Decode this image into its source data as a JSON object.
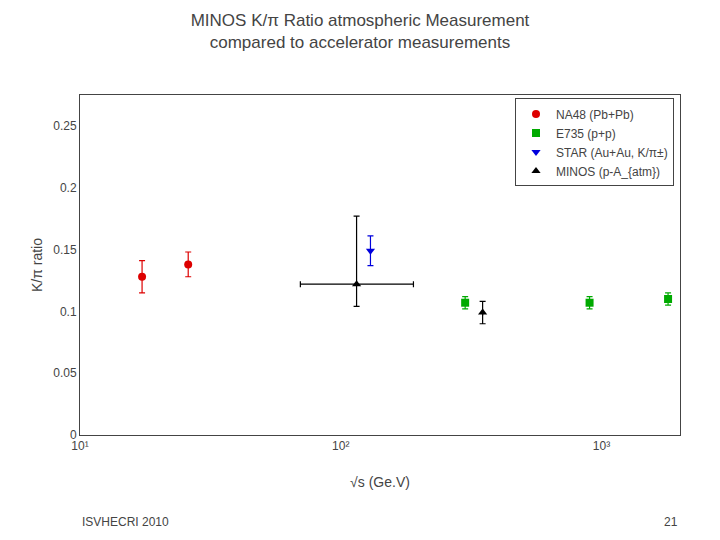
{
  "chart_data": {
    "type": "scatter",
    "title": "MINOS K/π Ratio atmospheric Measurement",
    "subtitle": "compared to accelerator measurements",
    "x_label": "√s (Ge.V)",
    "y_label": "K/π ratio",
    "annotations": [
      "ISVHECRI 2010",
      "21"
    ],
    "log": "x",
    "xlim": [
      10,
      2000
    ],
    "xticks": [
      {
        "value": 10,
        "label": "10¹"
      },
      {
        "value": 100,
        "label": "10²"
      },
      {
        "value": 1000,
        "label": "10³"
      }
    ],
    "ylim": [
      0,
      0.275
    ],
    "yticks": [
      0,
      0.05,
      0.1,
      0.15,
      0.2,
      0.25
    ],
    "grid": false,
    "legend": "upper right",
    "series": [
      {
        "name": "NA48 (Pb+Pb)",
        "color": "#dd0000",
        "marker": "circle",
        "x": [
          17.3,
          26.0
        ],
        "values": [
          0.128,
          0.138
        ],
        "error_y": {
          "minus": [
            0.013,
            0.01
          ],
          "plus": [
            0.013,
            0.01
          ]
        }
      },
      {
        "name": "E735 (p+p)",
        "color": "#00aa00",
        "marker": "square",
        "x": [
          300,
          900,
          1800
        ],
        "values": [
          0.107,
          0.107,
          0.11
        ],
        "error_y": {
          "minus": [
            0.005,
            0.005,
            0.005
          ],
          "plus": [
            0.005,
            0.005,
            0.005
          ]
        }
      },
      {
        "name": "STAR (Au+Au, K/π±)",
        "color": "#0000dd",
        "marker": "triangle-down",
        "x": [
          130
        ],
        "values": [
          0.149
        ],
        "error_y": {
          "minus": [
            0.012
          ],
          "plus": [
            0.012
          ]
        }
      },
      {
        "name": "MINOS (p-A_{atm})",
        "color": "#000000",
        "marker": "triangle-up",
        "x": [
          115,
          350
        ],
        "values": [
          0.122,
          0.099
        ],
        "error_x": {
          "minus": [
            45,
            0
          ],
          "plus": [
            75,
            0
          ]
        },
        "error_y": {
          "minus": [
            0.018,
            0.009
          ],
          "plus": [
            0.055,
            0.009
          ]
        }
      }
    ]
  }
}
